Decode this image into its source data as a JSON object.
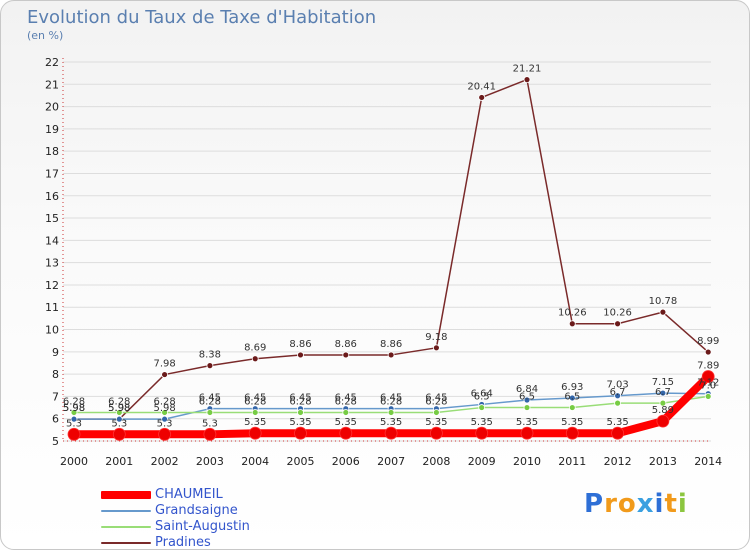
{
  "title": "Evolution du Taux de Taxe d'Habitation",
  "subtitle": "(en %)",
  "logo": {
    "letters": [
      "P",
      "r",
      "o",
      "x",
      "i",
      "t",
      "i"
    ],
    "colors": [
      "#2e6fd6",
      "#f19a1b",
      "#f19a1b",
      "#3aa0e0",
      "#2e6fd6",
      "#f19a1b",
      "#8cc63f"
    ]
  },
  "chart_data": {
    "type": "line",
    "title": "Evolution du Taux de Taxe d'Habitation",
    "ylabel": "(en %)",
    "xlabel": "",
    "ylim": [
      5,
      22
    ],
    "yticks": [
      "5",
      "6",
      "7",
      "8",
      "9",
      "10",
      "11",
      "12",
      "13",
      "14",
      "15",
      "16",
      "17",
      "18",
      "19",
      "20",
      "21",
      "22"
    ],
    "categories": [
      "2000",
      "2001",
      "2002",
      "2003",
      "2004",
      "2005",
      "2006",
      "2007",
      "2008",
      "2009",
      "2010",
      "2011",
      "2012",
      "2013",
      "2014"
    ],
    "series": [
      {
        "name": "Pradines",
        "color": "#7a2a2a",
        "marker": "#6b1a1a",
        "width": 1.5,
        "values": [
          5.98,
          5.98,
          7.98,
          8.38,
          8.69,
          8.86,
          8.86,
          8.86,
          9.18,
          20.41,
          21.21,
          10.26,
          10.26,
          10.78,
          8.99
        ],
        "labels": [
          "5.98",
          "5.98",
          "7.98",
          "8.38",
          "8.69",
          "8.86",
          "8.86",
          "8.86",
          "9.18",
          "20.41",
          "21.21",
          "10.26",
          "10.26",
          "10.78",
          "8.99"
        ]
      },
      {
        "name": "Grandsaigne",
        "color": "#6699cc",
        "marker": "#3366aa",
        "width": 1.5,
        "values": [
          5.98,
          5.98,
          5.98,
          6.45,
          6.45,
          6.45,
          6.45,
          6.45,
          6.45,
          6.64,
          6.84,
          6.93,
          7.03,
          7.15,
          7.12
        ],
        "labels": [
          "5.98",
          "5.98",
          "5.98",
          "6.45",
          "6.45",
          "6.45",
          "6.45",
          "6.45",
          "6.45",
          "6.64",
          "6.84",
          "6.93",
          "7.03",
          "7.15",
          "7.12"
        ]
      },
      {
        "name": "Saint-Augustin",
        "color": "#99dd77",
        "marker": "#77cc44",
        "width": 1.5,
        "values": [
          6.28,
          6.28,
          6.28,
          6.28,
          6.28,
          6.28,
          6.28,
          6.28,
          6.28,
          6.5,
          6.5,
          6.5,
          6.7,
          6.7,
          7.0
        ],
        "labels": [
          "6.28",
          "6.28",
          "6.28",
          "6.28",
          "6.28",
          "6.28",
          "6.28",
          "6.28",
          "6.28",
          "6.5",
          "6.5",
          "6.5",
          "6.7",
          "6.7",
          "7.0"
        ]
      },
      {
        "name": "CHAUMEIL",
        "color": "#ff0000",
        "marker": "#ee0000",
        "width": 8,
        "values": [
          5.3,
          5.3,
          5.3,
          5.3,
          5.35,
          5.35,
          5.35,
          5.35,
          5.35,
          5.35,
          5.35,
          5.35,
          5.35,
          5.89,
          7.89
        ],
        "labels": [
          "5.3",
          "5.3",
          "5.3",
          "5.3",
          "5.35",
          "5.35",
          "5.35",
          "5.35",
          "5.35",
          "5.35",
          "5.35",
          "5.35",
          "5.35",
          "5.89",
          "7.89"
        ]
      }
    ],
    "legend": [
      "CHAUMEIL",
      "Grandsaigne",
      "Saint-Augustin",
      "Pradines"
    ]
  }
}
